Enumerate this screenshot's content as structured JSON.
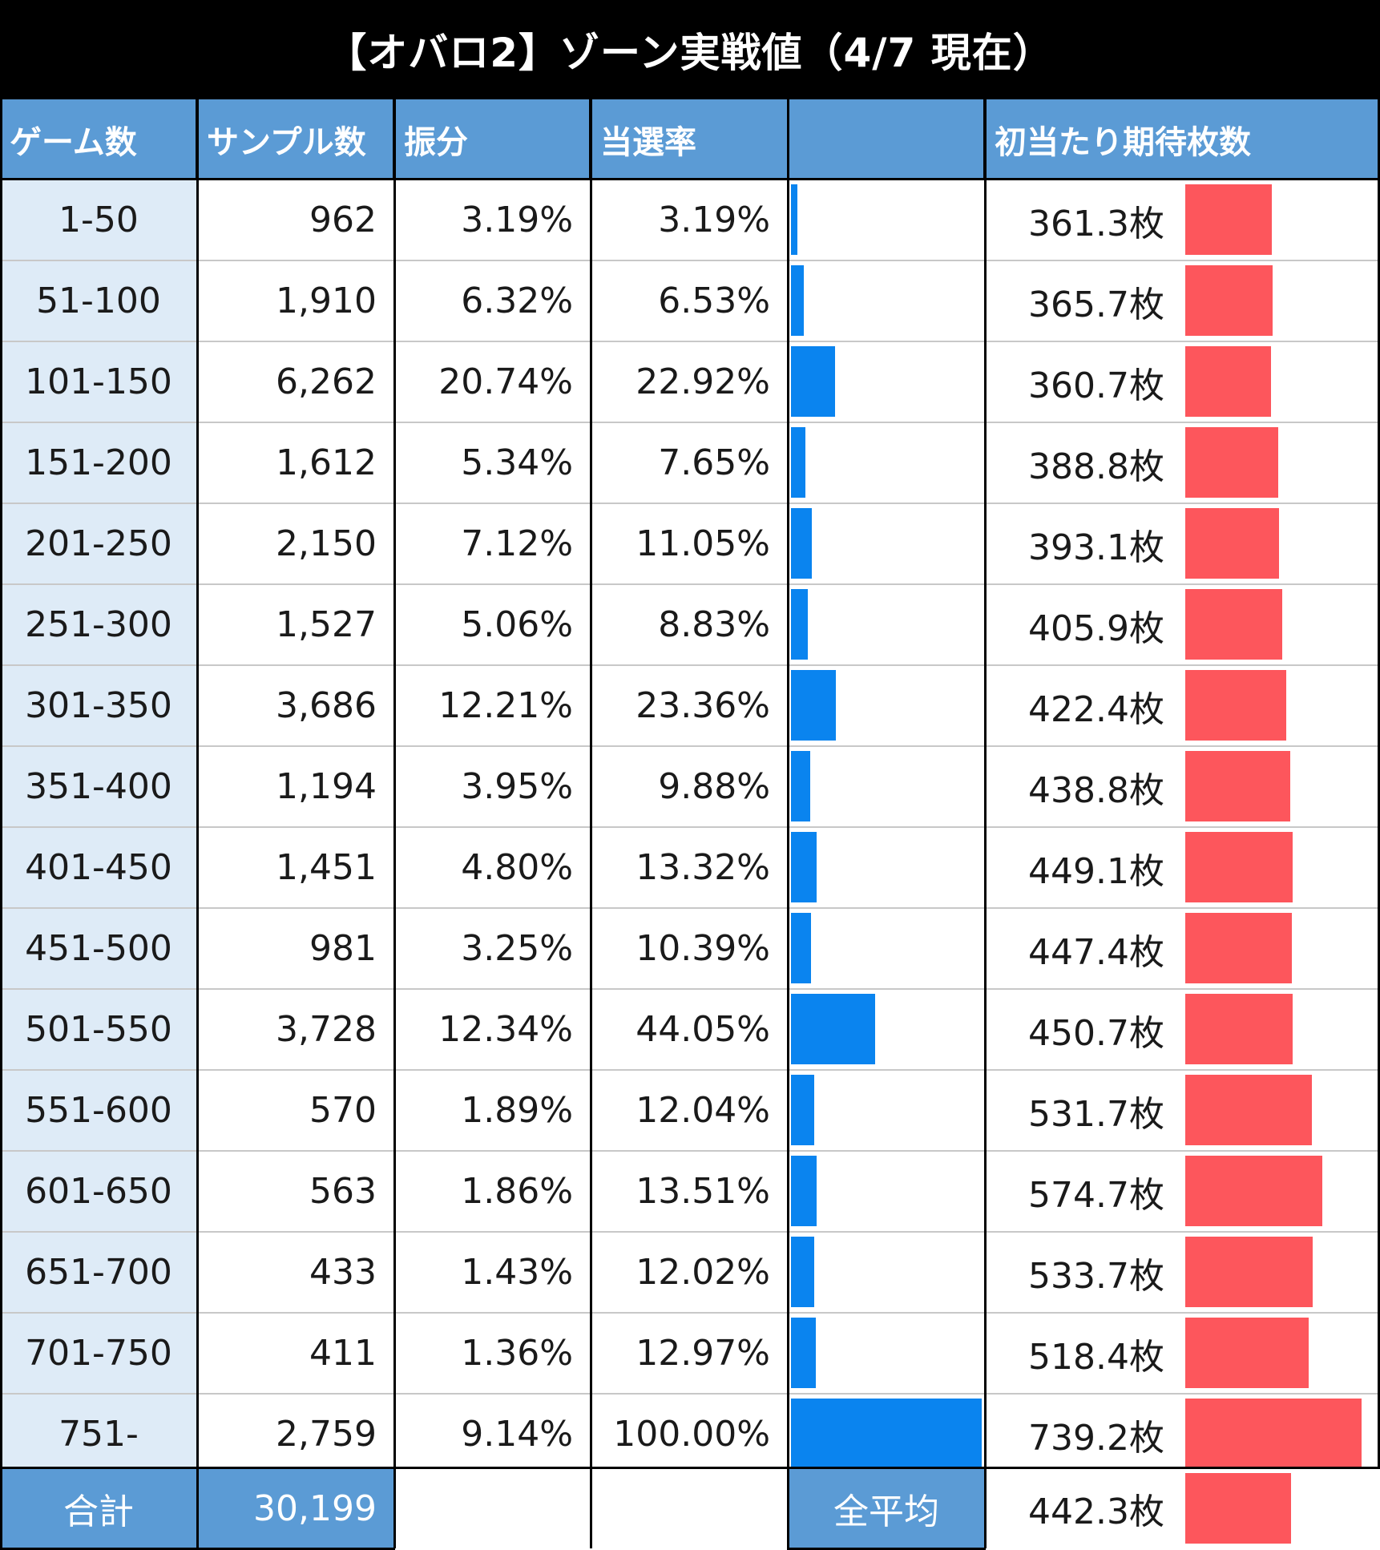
{
  "title": "【オバロ2】ゾーン実戦値（4/7 現在）",
  "headers": {
    "zone": "ゲーム数",
    "samples": "サンプル数",
    "share": "振分",
    "rate": "当選率",
    "rate_bar": "",
    "expected": "初当たり期待枚数"
  },
  "colors": {
    "header": "#5b9bd5",
    "zone_column": "#deebf7",
    "rate_bar": "#0a84ef",
    "expected_bar": "#fd565c",
    "title_bar": "#000000"
  },
  "chart_data": {
    "type": "table",
    "rows": [
      {
        "zone": "1-50",
        "samples": "962",
        "share": "3.19%",
        "rate": "3.19%",
        "rate_value": 3.19,
        "expected": "361.3枚",
        "expected_value": 361.3
      },
      {
        "zone": "51-100",
        "samples": "1,910",
        "share": "6.32%",
        "rate": "6.53%",
        "rate_value": 6.53,
        "expected": "365.7枚",
        "expected_value": 365.7
      },
      {
        "zone": "101-150",
        "samples": "6,262",
        "share": "20.74%",
        "rate": "22.92%",
        "rate_value": 22.92,
        "expected": "360.7枚",
        "expected_value": 360.7
      },
      {
        "zone": "151-200",
        "samples": "1,612",
        "share": "5.34%",
        "rate": "7.65%",
        "rate_value": 7.65,
        "expected": "388.8枚",
        "expected_value": 388.8
      },
      {
        "zone": "201-250",
        "samples": "2,150",
        "share": "7.12%",
        "rate": "11.05%",
        "rate_value": 11.05,
        "expected": "393.1枚",
        "expected_value": 393.1
      },
      {
        "zone": "251-300",
        "samples": "1,527",
        "share": "5.06%",
        "rate": "8.83%",
        "rate_value": 8.83,
        "expected": "405.9枚",
        "expected_value": 405.9
      },
      {
        "zone": "301-350",
        "samples": "3,686",
        "share": "12.21%",
        "rate": "23.36%",
        "rate_value": 23.36,
        "expected": "422.4枚",
        "expected_value": 422.4
      },
      {
        "zone": "351-400",
        "samples": "1,194",
        "share": "3.95%",
        "rate": "9.88%",
        "rate_value": 9.88,
        "expected": "438.8枚",
        "expected_value": 438.8
      },
      {
        "zone": "401-450",
        "samples": "1,451",
        "share": "4.80%",
        "rate": "13.32%",
        "rate_value": 13.32,
        "expected": "449.1枚",
        "expected_value": 449.1
      },
      {
        "zone": "451-500",
        "samples": "981",
        "share": "3.25%",
        "rate": "10.39%",
        "rate_value": 10.39,
        "expected": "447.4枚",
        "expected_value": 447.4
      },
      {
        "zone": "501-550",
        "samples": "3,728",
        "share": "12.34%",
        "rate": "44.05%",
        "rate_value": 44.05,
        "expected": "450.7枚",
        "expected_value": 450.7
      },
      {
        "zone": "551-600",
        "samples": "570",
        "share": "1.89%",
        "rate": "12.04%",
        "rate_value": 12.04,
        "expected": "531.7枚",
        "expected_value": 531.7
      },
      {
        "zone": "601-650",
        "samples": "563",
        "share": "1.86%",
        "rate": "13.51%",
        "rate_value": 13.51,
        "expected": "574.7枚",
        "expected_value": 574.7
      },
      {
        "zone": "651-700",
        "samples": "433",
        "share": "1.43%",
        "rate": "12.02%",
        "rate_value": 12.02,
        "expected": "533.7枚",
        "expected_value": 533.7
      },
      {
        "zone": "701-750",
        "samples": "411",
        "share": "1.36%",
        "rate": "12.97%",
        "rate_value": 12.97,
        "expected": "518.4枚",
        "expected_value": 518.4
      },
      {
        "zone": "751-",
        "samples": "2,759",
        "share": "9.14%",
        "rate": "100.00%",
        "rate_value": 100.0,
        "expected": "739.2枚",
        "expected_value": 739.2
      }
    ],
    "rate_max": 100,
    "expected_max": 739.2,
    "total": {
      "label": "合計",
      "samples": "30,199"
    },
    "average": {
      "label": "全平均",
      "expected": "442.3枚",
      "expected_value": 442.3
    }
  }
}
